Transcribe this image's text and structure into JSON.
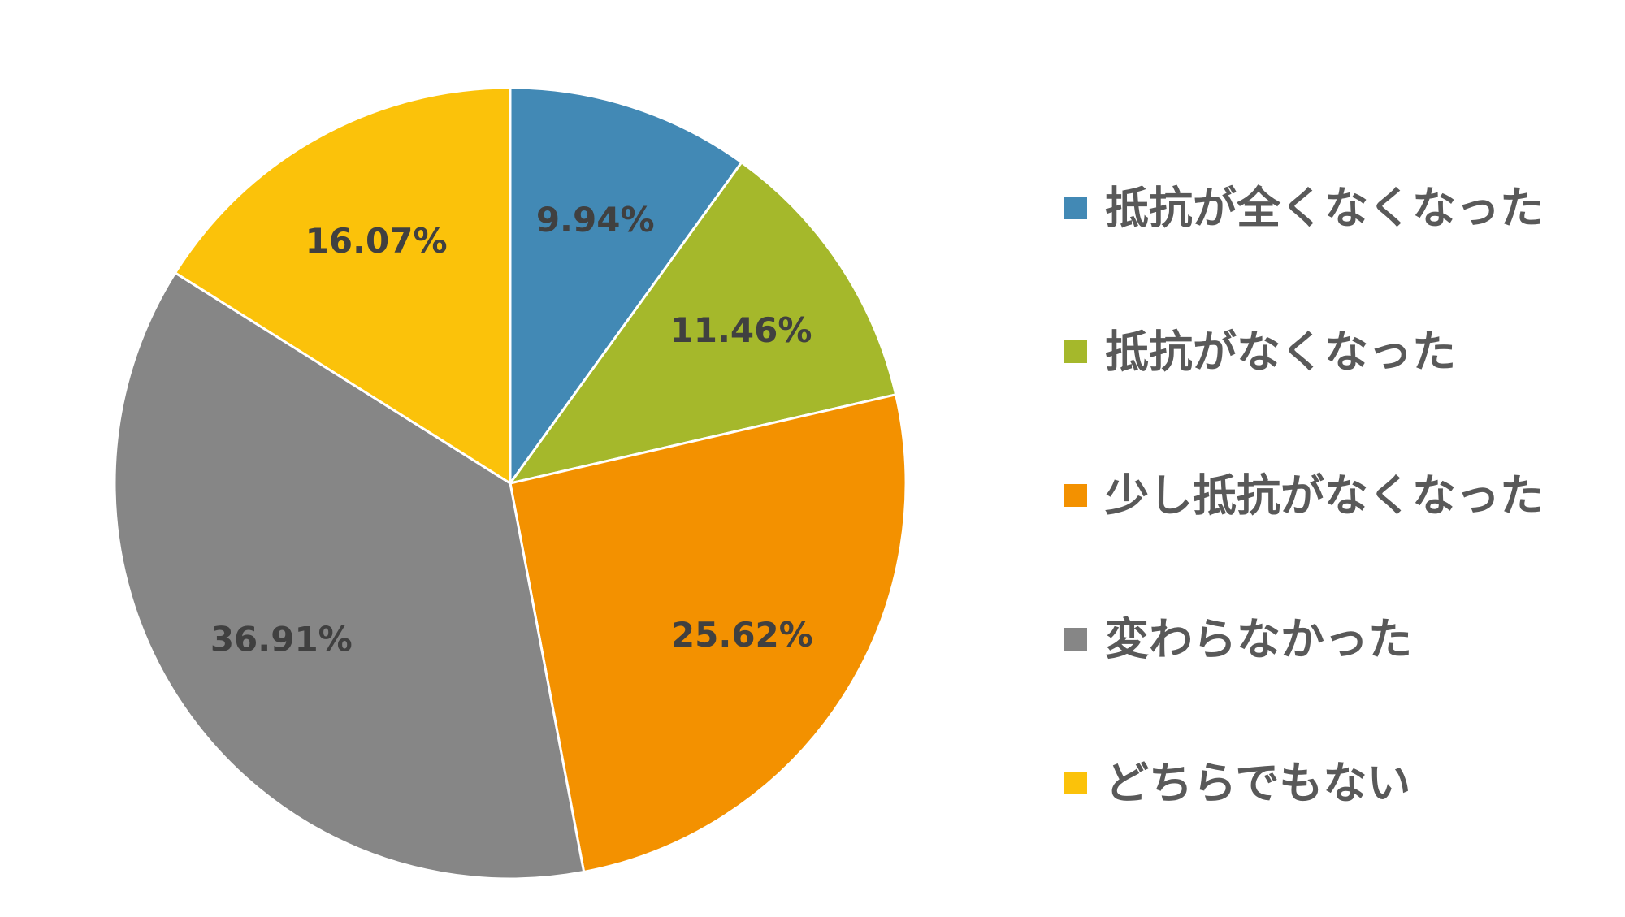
{
  "chart_data": {
    "type": "pie",
    "title": "",
    "start_angle_deg": 0,
    "direction": "clockwise",
    "legend_position": "right",
    "slices": [
      {
        "label": "抵抗が全くなくなった",
        "value": 9.94,
        "display": "9.94%",
        "color": "#4289B5"
      },
      {
        "label": "抵抗がなくなった",
        "value": 11.46,
        "display": "11.46%",
        "color": "#A5B82B"
      },
      {
        "label": "少し抵抗がなくなった",
        "value": 25.62,
        "display": "25.62%",
        "color": "#F39100"
      },
      {
        "label": "変わらなかった",
        "value": 36.91,
        "display": "36.91%",
        "color": "#868686"
      },
      {
        "label": "どちらでもない",
        "value": 16.07,
        "display": "16.07%",
        "color": "#FBC20A"
      }
    ]
  }
}
